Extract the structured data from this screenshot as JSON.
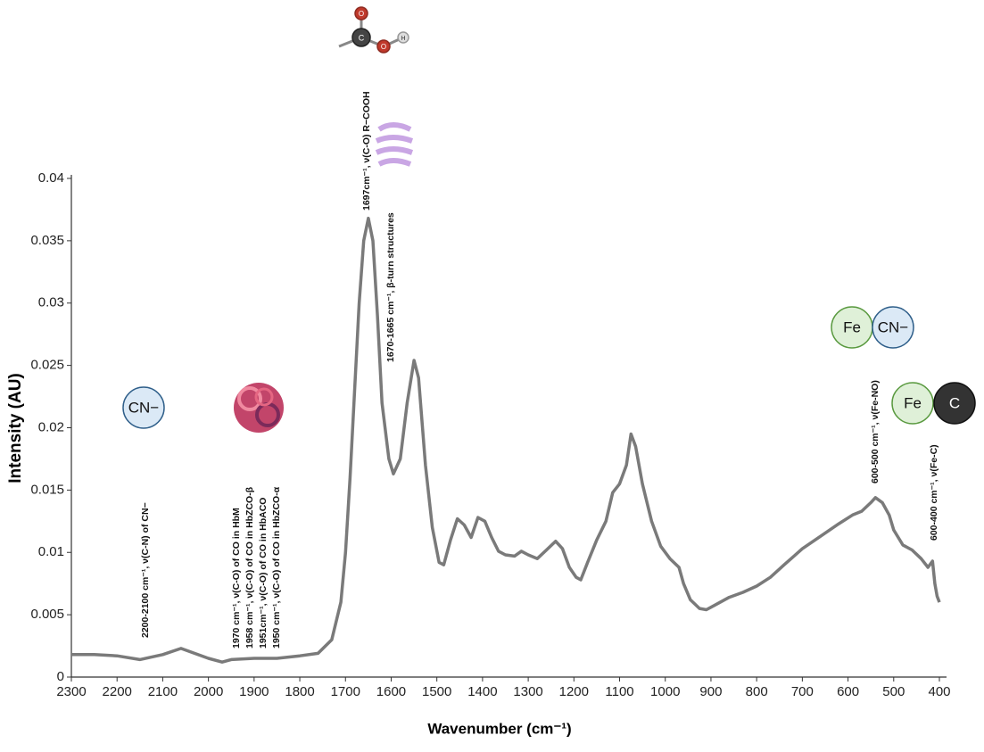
{
  "chart_data": {
    "type": "line",
    "x_label": "Wavenumber (cm⁻¹)",
    "y_label": "Intensity (AU)",
    "xlim": [
      2300,
      400
    ],
    "ylim": [
      0,
      0.04
    ],
    "xticks": [
      2300,
      2200,
      2100,
      2000,
      1900,
      1800,
      1700,
      1600,
      1500,
      1400,
      1300,
      1200,
      1100,
      1000,
      900,
      800,
      700,
      600,
      500,
      400
    ],
    "yticks": [
      0,
      0.005,
      0.01,
      0.015,
      0.02,
      0.025,
      0.03,
      0.035,
      0.04
    ],
    "series": [
      {
        "color": "#7a7a7a",
        "x": [
          2300,
          2250,
          2200,
          2150,
          2100,
          2060,
          2000,
          1970,
          1950,
          1900,
          1850,
          1800,
          1760,
          1730,
          1710,
          1700,
          1690,
          1680,
          1670,
          1660,
          1650,
          1640,
          1630,
          1620,
          1605,
          1595,
          1580,
          1565,
          1550,
          1540,
          1525,
          1510,
          1495,
          1485,
          1470,
          1455,
          1440,
          1425,
          1410,
          1395,
          1380,
          1365,
          1350,
          1330,
          1315,
          1300,
          1280,
          1260,
          1240,
          1225,
          1210,
          1195,
          1185,
          1170,
          1150,
          1130,
          1115,
          1100,
          1085,
          1075,
          1065,
          1050,
          1030,
          1010,
          990,
          970,
          960,
          945,
          925,
          910,
          890,
          860,
          830,
          800,
          770,
          740,
          700,
          660,
          620,
          590,
          570,
          550,
          540,
          525,
          510,
          500,
          480,
          460,
          440,
          425,
          415,
          410,
          405,
          400
        ],
        "values": [
          0.0018,
          0.0018,
          0.0017,
          0.0014,
          0.0018,
          0.0023,
          0.0015,
          0.0012,
          0.0014,
          0.0015,
          0.0015,
          0.0017,
          0.0019,
          0.003,
          0.006,
          0.01,
          0.016,
          0.023,
          0.03,
          0.035,
          0.0368,
          0.035,
          0.029,
          0.022,
          0.0175,
          0.0163,
          0.0175,
          0.022,
          0.0254,
          0.024,
          0.017,
          0.012,
          0.0092,
          0.009,
          0.011,
          0.0127,
          0.0122,
          0.0112,
          0.0128,
          0.0125,
          0.0112,
          0.0101,
          0.0098,
          0.0097,
          0.0101,
          0.0098,
          0.0095,
          0.0102,
          0.0109,
          0.0103,
          0.0088,
          0.008,
          0.0078,
          0.0092,
          0.011,
          0.0125,
          0.0148,
          0.0155,
          0.017,
          0.0195,
          0.0185,
          0.0155,
          0.0125,
          0.0105,
          0.0095,
          0.0088,
          0.0075,
          0.0062,
          0.0055,
          0.0054,
          0.0058,
          0.0064,
          0.0068,
          0.0073,
          0.008,
          0.009,
          0.0103,
          0.0113,
          0.0123,
          0.013,
          0.0133,
          0.014,
          0.0144,
          0.014,
          0.013,
          0.0118,
          0.0106,
          0.0102,
          0.0095,
          0.0088,
          0.0093,
          0.0075,
          0.0065,
          0.006
        ]
      }
    ],
    "annotations": [
      "2200-2100 cm⁻¹, ν(C-N) of CN−",
      "1970 cm⁻¹, ν(C-O) of CO in HbM",
      "1958 cm⁻¹, ν(C-O) of CO in HbZCO-β",
      "1951cm⁻¹, ν(C-O) of CO in HbACO",
      "1950 cm⁻¹, ν(C-O) of CO in HbZCO-α",
      "1697cm⁻¹, ν(C-O) R−COOH",
      "1670-1665 cm⁻¹, β-turn structures",
      "600-500 cm⁻¹, ν(Fe-NO)",
      "600-400 cm⁻¹, ν(Fe-C)"
    ],
    "icon_labels": [
      "CN−",
      "Fe",
      "CN−",
      "Fe",
      "C",
      "O",
      "C",
      "O",
      "H"
    ]
  }
}
